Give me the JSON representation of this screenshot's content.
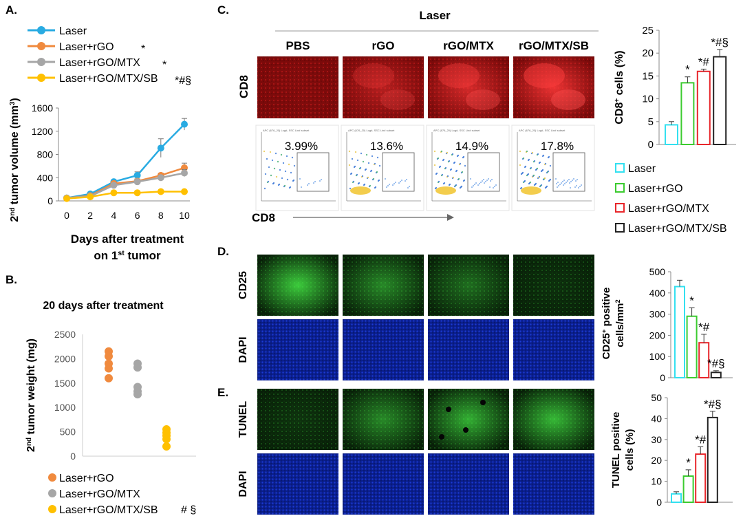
{
  "panels": {
    "A": {
      "letter": "A.",
      "legend": [
        {
          "label": "Laser",
          "color": "#29ABE2",
          "sig": ""
        },
        {
          "label": "Laser+rGO",
          "color": "#F08A3E",
          "sig": "*"
        },
        {
          "label": "Laser+rGO/MTX",
          "color": "#A6A6A6",
          "sig": "*"
        },
        {
          "label": "Laser+rGO/MTX/SB",
          "color": "#FFC000",
          "sig": "*#§"
        }
      ]
    },
    "B": {
      "letter": "B.",
      "title": "20 days after treatment",
      "legend": [
        {
          "label": "Laser+rGO",
          "color": "#F08A3E",
          "sig": ""
        },
        {
          "label": "Laser+rGO/MTX",
          "color": "#A6A6A6",
          "sig": ""
        },
        {
          "label": "Laser+rGO/MTX/SB",
          "color": "#FFC000",
          "sig": "# §"
        }
      ]
    },
    "C": {
      "letter": "C.",
      "laser_label": "Laser",
      "columns": [
        "PBS",
        "rGO",
        "rGO/MTX",
        "rGO/MTX/SB"
      ],
      "row_label": "CD8",
      "flow_percents": [
        "3.99%",
        "13.6%",
        "14.9%",
        "17.8%"
      ],
      "flow_axis_label": "CD8",
      "flow_header": "APC (676_20) Log#, SSC Lin# subset",
      "legend": [
        {
          "label": "Laser",
          "color": "#33E0F0"
        },
        {
          "label": "Laser+rGO",
          "color": "#3BCB2F"
        },
        {
          "label": "Laser+rGO/MTX",
          "color": "#E8262B"
        },
        {
          "label": "Laser+rGO/MTX/SB",
          "color": "#222222"
        }
      ]
    },
    "D": {
      "letter": "D.",
      "row_labels": [
        "CD25",
        "DAPI"
      ]
    },
    "E": {
      "letter": "E.",
      "row_labels": [
        "TUNEL",
        "DAPI"
      ]
    }
  },
  "chart_data": [
    {
      "id": "A",
      "type": "line",
      "xlabel": "Days after treatment on 1st tumor",
      "ylabel": "2nd tumor volume (mm3)",
      "x": [
        0,
        2,
        4,
        6,
        8,
        10
      ],
      "xlim": [
        0,
        10
      ],
      "ylim": [
        0,
        1600
      ],
      "yticks": [
        0,
        400,
        800,
        1200,
        1600
      ],
      "series": [
        {
          "name": "Laser",
          "values": [
            50,
            120,
            330,
            440,
            910,
            1320
          ],
          "errors": [
            10,
            20,
            30,
            60,
            160,
            100
          ]
        },
        {
          "name": "Laser+rGO",
          "values": [
            50,
            90,
            300,
            340,
            440,
            570
          ],
          "errors": [
            10,
            15,
            30,
            40,
            40,
            80
          ]
        },
        {
          "name": "Laser+rGO/MTX",
          "values": [
            50,
            80,
            270,
            330,
            400,
            480
          ],
          "errors": [
            10,
            15,
            30,
            40,
            40,
            60
          ]
        },
        {
          "name": "Laser+rGO/MTX/SB",
          "values": [
            40,
            70,
            140,
            140,
            160,
            160
          ],
          "errors": [
            5,
            10,
            15,
            15,
            15,
            15
          ]
        }
      ]
    },
    {
      "id": "B",
      "type": "scatter",
      "title": "20 days after treatment",
      "ylabel": "2nd tumor weight (mg)",
      "ylim": [
        0,
        2500
      ],
      "yticks": [
        0,
        500,
        1000,
        1500,
        2000,
        2500
      ],
      "series": [
        {
          "name": "Laser+rGO",
          "values": [
            2150,
            2050,
            1900,
            1800,
            1600
          ]
        },
        {
          "name": "Laser+rGO/MTX",
          "values": [
            1900,
            1820,
            1420,
            1330,
            1270
          ]
        },
        {
          "name": "Laser+rGO/MTX/SB",
          "values": [
            550,
            480,
            420,
            350,
            200
          ]
        }
      ]
    },
    {
      "id": "C",
      "type": "bar",
      "ylabel": "CD8+ cells (%)",
      "categories": [
        "Laser",
        "Laser+rGO",
        "Laser+rGO/MTX",
        "Laser+rGO/MTX/SB"
      ],
      "values": [
        4.3,
        13.5,
        16.0,
        19.2
      ],
      "errors": [
        0.7,
        1.3,
        0.5,
        1.6
      ],
      "annotations": [
        "",
        "*",
        "*#",
        "*#§"
      ],
      "ylim": [
        0,
        25
      ],
      "yticks": [
        0,
        5,
        10,
        15,
        20,
        25
      ]
    },
    {
      "id": "D",
      "type": "bar",
      "ylabel": "CD25+ positive cells/mm2",
      "categories": [
        "Laser",
        "Laser+rGO",
        "Laser+rGO/MTX",
        "Laser+rGO/MTX/SB"
      ],
      "values": [
        430,
        290,
        165,
        25
      ],
      "errors": [
        30,
        40,
        40,
        8
      ],
      "annotations": [
        "",
        "*",
        "*#",
        "*#§"
      ],
      "ylim": [
        0,
        500
      ],
      "yticks": [
        0,
        100,
        200,
        300,
        400,
        500
      ]
    },
    {
      "id": "E",
      "type": "bar",
      "ylabel": "TUNEL positive cells (%)",
      "categories": [
        "Laser",
        "Laser+rGO",
        "Laser+rGO/MTX",
        "Laser+rGO/MTX/SB"
      ],
      "values": [
        4,
        12.5,
        23,
        40.5
      ],
      "errors": [
        1,
        3,
        3.5,
        3
      ],
      "annotations": [
        "",
        "*",
        "*#",
        "*#§"
      ],
      "ylim": [
        0,
        50
      ],
      "yticks": [
        0,
        10,
        20,
        30,
        40,
        50
      ]
    }
  ]
}
